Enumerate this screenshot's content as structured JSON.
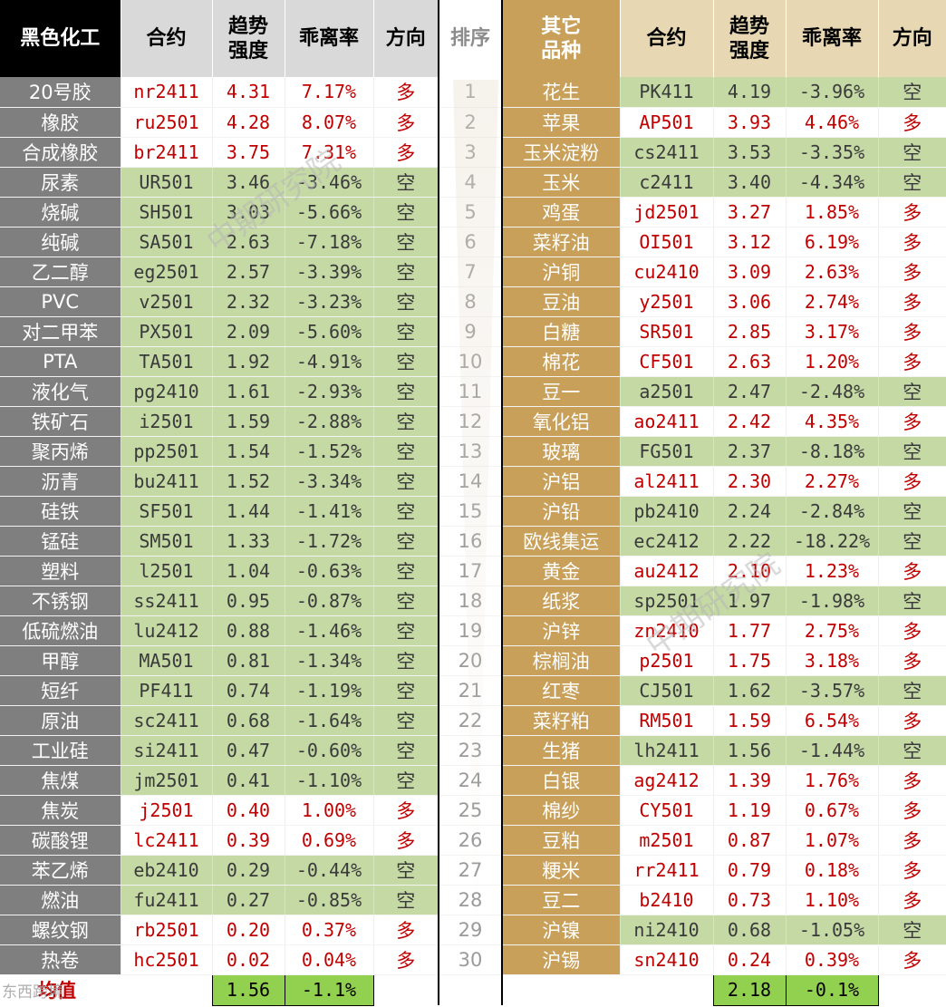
{
  "headers": {
    "left": {
      "category": "黑色化工",
      "contract": "合约",
      "strength": "趋势\n强度",
      "deviation": "乖离率",
      "direction": "方向"
    },
    "rank": "排序",
    "right": {
      "category": "其它\n品种",
      "contract": "合约",
      "strength": "趋势\n强度",
      "deviation": "乖离率",
      "direction": "方向"
    }
  },
  "left_rows": [
    {
      "name": "20号胶",
      "contract": "nr2411",
      "strength": "4.31",
      "deviation": "7.17%",
      "direction": "多"
    },
    {
      "name": "橡胶",
      "contract": "ru2501",
      "strength": "4.28",
      "deviation": "8.07%",
      "direction": "多"
    },
    {
      "name": "合成橡胶",
      "contract": "br2411",
      "strength": "3.75",
      "deviation": "7.31%",
      "direction": "多"
    },
    {
      "name": "尿素",
      "contract": "UR501",
      "strength": "3.46",
      "deviation": "-3.46%",
      "direction": "空"
    },
    {
      "name": "烧碱",
      "contract": "SH501",
      "strength": "3.03",
      "deviation": "-5.66%",
      "direction": "空"
    },
    {
      "name": "纯碱",
      "contract": "SA501",
      "strength": "2.63",
      "deviation": "-7.18%",
      "direction": "空"
    },
    {
      "name": "乙二醇",
      "contract": "eg2501",
      "strength": "2.57",
      "deviation": "-3.39%",
      "direction": "空"
    },
    {
      "name": "PVC",
      "contract": "v2501",
      "strength": "2.32",
      "deviation": "-3.23%",
      "direction": "空"
    },
    {
      "name": "对二甲苯",
      "contract": "PX501",
      "strength": "2.09",
      "deviation": "-5.60%",
      "direction": "空"
    },
    {
      "name": "PTA",
      "contract": "TA501",
      "strength": "1.92",
      "deviation": "-4.91%",
      "direction": "空"
    },
    {
      "name": "液化气",
      "contract": "pg2410",
      "strength": "1.61",
      "deviation": "-2.93%",
      "direction": "空"
    },
    {
      "name": "铁矿石",
      "contract": "i2501",
      "strength": "1.59",
      "deviation": "-2.88%",
      "direction": "空"
    },
    {
      "name": "聚丙烯",
      "contract": "pp2501",
      "strength": "1.54",
      "deviation": "-1.52%",
      "direction": "空"
    },
    {
      "name": "沥青",
      "contract": "bu2411",
      "strength": "1.52",
      "deviation": "-3.34%",
      "direction": "空"
    },
    {
      "name": "硅铁",
      "contract": "SF501",
      "strength": "1.44",
      "deviation": "-1.41%",
      "direction": "空"
    },
    {
      "name": "锰硅",
      "contract": "SM501",
      "strength": "1.33",
      "deviation": "-1.72%",
      "direction": "空"
    },
    {
      "name": "塑料",
      "contract": "l2501",
      "strength": "1.04",
      "deviation": "-0.63%",
      "direction": "空"
    },
    {
      "name": "不锈钢",
      "contract": "ss2411",
      "strength": "0.95",
      "deviation": "-0.87%",
      "direction": "空"
    },
    {
      "name": "低硫燃油",
      "contract": "lu2412",
      "strength": "0.88",
      "deviation": "-1.46%",
      "direction": "空"
    },
    {
      "name": "甲醇",
      "contract": "MA501",
      "strength": "0.81",
      "deviation": "-1.34%",
      "direction": "空"
    },
    {
      "name": "短纤",
      "contract": "PF411",
      "strength": "0.74",
      "deviation": "-1.19%",
      "direction": "空"
    },
    {
      "name": "原油",
      "contract": "sc2411",
      "strength": "0.68",
      "deviation": "-1.64%",
      "direction": "空"
    },
    {
      "name": "工业硅",
      "contract": "si2411",
      "strength": "0.47",
      "deviation": "-0.60%",
      "direction": "空"
    },
    {
      "name": "焦煤",
      "contract": "jm2501",
      "strength": "0.41",
      "deviation": "-1.10%",
      "direction": "空"
    },
    {
      "name": "焦炭",
      "contract": "j2501",
      "strength": "0.40",
      "deviation": "1.00%",
      "direction": "多"
    },
    {
      "name": "碳酸锂",
      "contract": "lc2411",
      "strength": "0.39",
      "deviation": "0.69%",
      "direction": "多"
    },
    {
      "name": "苯乙烯",
      "contract": "eb2410",
      "strength": "0.29",
      "deviation": "-0.44%",
      "direction": "空"
    },
    {
      "name": "燃油",
      "contract": "fu2411",
      "strength": "0.27",
      "deviation": "-0.85%",
      "direction": "空"
    },
    {
      "name": "螺纹钢",
      "contract": "rb2501",
      "strength": "0.20",
      "deviation": "0.37%",
      "direction": "多"
    },
    {
      "name": "热卷",
      "contract": "hc2501",
      "strength": "0.02",
      "deviation": "0.04%",
      "direction": "多"
    }
  ],
  "right_rows": [
    {
      "name": "花生",
      "contract": "PK411",
      "strength": "4.19",
      "deviation": "-3.96%",
      "direction": "空"
    },
    {
      "name": "苹果",
      "contract": "AP501",
      "strength": "3.93",
      "deviation": "4.46%",
      "direction": "多"
    },
    {
      "name": "玉米淀粉",
      "contract": "cs2411",
      "strength": "3.53",
      "deviation": "-3.35%",
      "direction": "空"
    },
    {
      "name": "玉米",
      "contract": "c2411",
      "strength": "3.40",
      "deviation": "-4.34%",
      "direction": "空"
    },
    {
      "name": "鸡蛋",
      "contract": "jd2501",
      "strength": "3.27",
      "deviation": "1.85%",
      "direction": "多"
    },
    {
      "name": "菜籽油",
      "contract": "OI501",
      "strength": "3.12",
      "deviation": "6.19%",
      "direction": "多"
    },
    {
      "name": "沪铜",
      "contract": "cu2410",
      "strength": "3.09",
      "deviation": "2.63%",
      "direction": "多"
    },
    {
      "name": "豆油",
      "contract": "y2501",
      "strength": "3.06",
      "deviation": "2.74%",
      "direction": "多"
    },
    {
      "name": "白糖",
      "contract": "SR501",
      "strength": "2.85",
      "deviation": "3.17%",
      "direction": "多"
    },
    {
      "name": "棉花",
      "contract": "CF501",
      "strength": "2.63",
      "deviation": "1.20%",
      "direction": "多"
    },
    {
      "name": "豆一",
      "contract": "a2501",
      "strength": "2.47",
      "deviation": "-2.48%",
      "direction": "空"
    },
    {
      "name": "氧化铝",
      "contract": "ao2411",
      "strength": "2.42",
      "deviation": "4.35%",
      "direction": "多"
    },
    {
      "name": "玻璃",
      "contract": "FG501",
      "strength": "2.37",
      "deviation": "-8.18%",
      "direction": "空"
    },
    {
      "name": "沪铝",
      "contract": "al2411",
      "strength": "2.30",
      "deviation": "2.27%",
      "direction": "多"
    },
    {
      "name": "沪铅",
      "contract": "pb2410",
      "strength": "2.24",
      "deviation": "-2.84%",
      "direction": "空"
    },
    {
      "name": "欧线集运",
      "contract": "ec2412",
      "strength": "2.22",
      "deviation": "-18.22%",
      "direction": "空"
    },
    {
      "name": "黄金",
      "contract": "au2412",
      "strength": "2.10",
      "deviation": "1.23%",
      "direction": "多"
    },
    {
      "name": "纸浆",
      "contract": "sp2501",
      "strength": "1.97",
      "deviation": "-1.98%",
      "direction": "空"
    },
    {
      "name": "沪锌",
      "contract": "zn2410",
      "strength": "1.77",
      "deviation": "2.75%",
      "direction": "多"
    },
    {
      "name": "棕榈油",
      "contract": "p2501",
      "strength": "1.75",
      "deviation": "3.18%",
      "direction": "多"
    },
    {
      "name": "红枣",
      "contract": "CJ501",
      "strength": "1.62",
      "deviation": "-3.57%",
      "direction": "空"
    },
    {
      "name": "菜籽粕",
      "contract": "RM501",
      "strength": "1.59",
      "deviation": "6.54%",
      "direction": "多"
    },
    {
      "name": "生猪",
      "contract": "lh2411",
      "strength": "1.56",
      "deviation": "-1.44%",
      "direction": "空"
    },
    {
      "name": "白银",
      "contract": "ag2412",
      "strength": "1.39",
      "deviation": "1.76%",
      "direction": "多"
    },
    {
      "name": "棉纱",
      "contract": "CY501",
      "strength": "1.19",
      "deviation": "0.67%",
      "direction": "多"
    },
    {
      "name": "豆粕",
      "contract": "m2501",
      "strength": "0.87",
      "deviation": "1.07%",
      "direction": "多"
    },
    {
      "name": "粳米",
      "contract": "rr2411",
      "strength": "0.79",
      "deviation": "0.18%",
      "direction": "多"
    },
    {
      "name": "豆二",
      "contract": "b2410",
      "strength": "0.73",
      "deviation": "1.10%",
      "direction": "多"
    },
    {
      "name": "沪镍",
      "contract": "ni2410",
      "strength": "0.68",
      "deviation": "-1.05%",
      "direction": "空"
    },
    {
      "name": "沪锡",
      "contract": "sn2410",
      "strength": "0.24",
      "deviation": "0.39%",
      "direction": "多"
    }
  ],
  "footer": {
    "label": "均值",
    "left_avg_strength": "1.56",
    "left_avg_deviation": "-1.1%",
    "right_avg_strength": "2.18",
    "right_avg_deviation": "-0.1%"
  },
  "watermark": "中期研究院",
  "badge": "东西跨境",
  "colors": {
    "long_text": "#c00000",
    "short_bg": "#c5d9a5",
    "left_name_bg": "#7f7f7f",
    "right_name_bg": "#c8a05a",
    "avg_bg": "#92d050"
  }
}
